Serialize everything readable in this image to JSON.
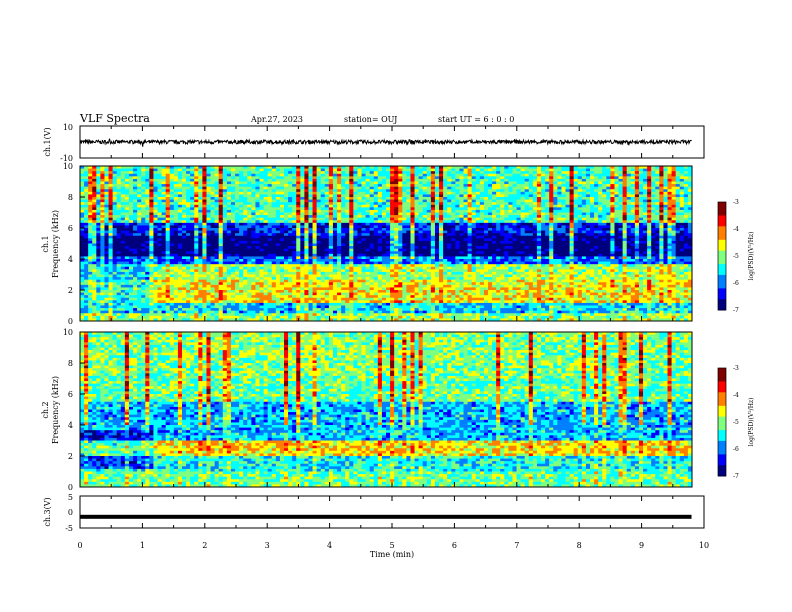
{
  "header": {
    "title": "VLF Spectra",
    "date": "Apr.27, 2023",
    "station": "station= OUJ",
    "start": "start  UT  =   6  : 0   : 0"
  },
  "colors": {
    "background": "#ffffff",
    "axis": "#000000",
    "colormap": [
      "#00007f",
      "#0000ff",
      "#007fff",
      "#00ffff",
      "#7fff7f",
      "#ffff00",
      "#ff7f00",
      "#ff0000",
      "#7f0000"
    ]
  },
  "chart_data": [
    {
      "type": "line",
      "id": "ch1-waveform",
      "ylabel": "ch.1(V)",
      "ylim": [
        -10,
        10
      ],
      "y_ticks": [
        "10",
        "-10"
      ],
      "approx_level": 0,
      "description_values": {
        "mean": 0,
        "envelope_min": -1.2,
        "envelope_max": 1.2
      }
    },
    {
      "type": "heatmap",
      "id": "ch1-spectrogram",
      "ylabel": "ch.1\nFrequency (kHz)",
      "ylabel_lines": [
        "ch.1",
        "Frequency  (kHz)"
      ],
      "ylim": [
        0,
        10
      ],
      "y_ticks": [
        "0",
        "2",
        "4",
        "6",
        "8",
        "10"
      ],
      "colorbar": {
        "label": "log(PSD)(V²/Hz)",
        "range": [
          -7,
          -3
        ],
        "ticks": [
          "-3",
          "-4",
          "-5",
          "-6",
          "-7"
        ]
      },
      "bands": [
        {
          "f": [
            0.0,
            0.5
          ],
          "level": -5.0
        },
        {
          "f": [
            0.5,
            1.2
          ],
          "level": -5.6
        },
        {
          "f": [
            1.2,
            2.6
          ],
          "level": -4.6
        },
        {
          "f": [
            2.6,
            3.6
          ],
          "level": -4.9
        },
        {
          "f": [
            3.6,
            4.2
          ],
          "level": -6.0
        },
        {
          "f": [
            4.2,
            5.5
          ],
          "level": -6.9
        },
        {
          "f": [
            5.5,
            6.4
          ],
          "level": -6.3
        },
        {
          "f": [
            6.4,
            10.0
          ],
          "level": -5.2
        }
      ]
    },
    {
      "type": "heatmap",
      "id": "ch2-spectrogram",
      "ylabel": "ch.2\nFrequency (kHz)",
      "ylabel_lines": [
        "ch.2",
        "Frequency  (kHz)"
      ],
      "ylim": [
        0,
        10
      ],
      "y_ticks": [
        "0",
        "2",
        "4",
        "6",
        "8",
        "10"
      ],
      "colorbar": {
        "label": "log(PSD)(V²/Hz)",
        "range": [
          -7,
          -3
        ],
        "ticks": [
          "-3",
          "-4",
          "-5",
          "-6",
          "-7"
        ]
      },
      "bands": [
        {
          "f": [
            0.0,
            1.0
          ],
          "level": -5.1
        },
        {
          "f": [
            1.0,
            2.0
          ],
          "level": -5.4
        },
        {
          "f": [
            2.0,
            3.0
          ],
          "level": -4.5
        },
        {
          "f": [
            3.0,
            5.5
          ],
          "level": -5.7
        },
        {
          "f": [
            5.5,
            7.2
          ],
          "level": -5.1
        },
        {
          "f": [
            7.2,
            10.0
          ],
          "level": -5.0
        }
      ]
    },
    {
      "type": "line",
      "id": "ch3-waveform",
      "ylabel": "ch.3(V)",
      "ylim": [
        -5,
        5
      ],
      "y_ticks": [
        "5",
        "0",
        "-5"
      ],
      "approx_level": -1.5
    }
  ],
  "xaxis": {
    "label": "Time  (min)",
    "range": [
      0,
      10
    ],
    "ticks": [
      "0",
      "1",
      "2",
      "3",
      "4",
      "5",
      "6",
      "7",
      "8",
      "9",
      "10"
    ]
  }
}
